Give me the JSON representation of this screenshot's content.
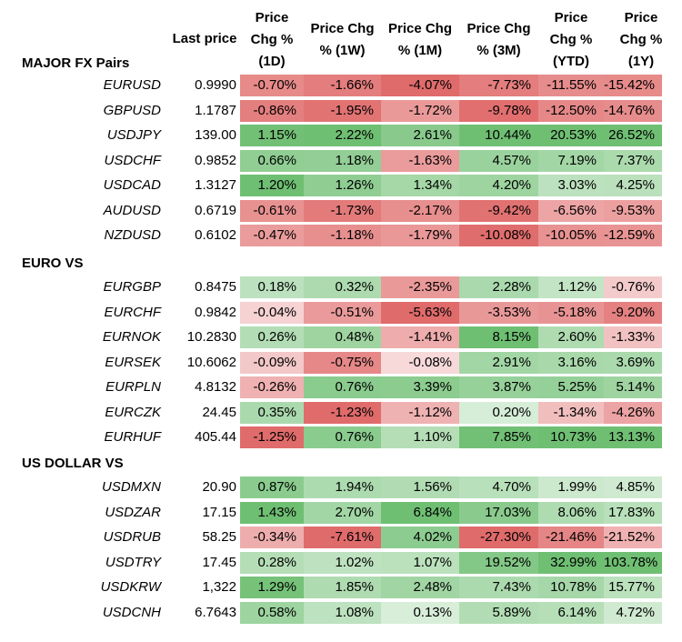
{
  "headers": [
    "Last price",
    "Price\nChg %\n(1D)",
    "Price Chg\n% (1W)",
    "Price Chg\n% (1M)",
    "Price Chg\n% (3M)",
    "Price\nChg %\n(YTD)",
    "Price\nChg %\n(1Y)"
  ],
  "sections": [
    {
      "title": "MAJOR FX Pairs",
      "rows": [
        {
          "pair": "EURUSD",
          "last": "0.9990",
          "vals": [
            "-0.70%",
            "-1.66%",
            "-4.07%",
            "-7.73%",
            "-11.55%",
            "-15.42%"
          ]
        },
        {
          "pair": "GBPUSD",
          "last": "1.1787",
          "vals": [
            "-0.86%",
            "-1.95%",
            "-1.72%",
            "-9.78%",
            "-12.50%",
            "-14.76%"
          ]
        },
        {
          "pair": "USDJPY",
          "last": "139.00",
          "vals": [
            "1.15%",
            "2.22%",
            "2.61%",
            "10.44%",
            "20.53%",
            "26.52%"
          ]
        },
        {
          "pair": "USDCHF",
          "last": "0.9852",
          "vals": [
            "0.66%",
            "1.18%",
            "-1.63%",
            "4.57%",
            "7.19%",
            "7.37%"
          ]
        },
        {
          "pair": "USDCAD",
          "last": "1.3127",
          "vals": [
            "1.20%",
            "1.26%",
            "1.34%",
            "4.20%",
            "3.03%",
            "4.25%"
          ]
        },
        {
          "pair": "AUDUSD",
          "last": "0.6719",
          "vals": [
            "-0.61%",
            "-1.73%",
            "-2.17%",
            "-9.42%",
            "-6.56%",
            "-9.53%"
          ]
        },
        {
          "pair": "NZDUSD",
          "last": "0.6102",
          "vals": [
            "-0.47%",
            "-1.18%",
            "-1.79%",
            "-10.08%",
            "-10.05%",
            "-12.59%"
          ]
        }
      ]
    },
    {
      "title": "EURO VS",
      "rows": [
        {
          "pair": "EURGBP",
          "last": "0.8475",
          "vals": [
            "0.18%",
            "0.32%",
            "-2.35%",
            "2.28%",
            "1.12%",
            "-0.76%"
          ]
        },
        {
          "pair": "EURCHF",
          "last": "0.9842",
          "vals": [
            "-0.04%",
            "-0.51%",
            "-5.63%",
            "-3.53%",
            "-5.18%",
            "-9.20%"
          ]
        },
        {
          "pair": "EURNOK",
          "last": "10.2830",
          "vals": [
            "0.26%",
            "0.48%",
            "-1.41%",
            "8.15%",
            "2.60%",
            "-1.33%"
          ]
        },
        {
          "pair": "EURSEK",
          "last": "10.6062",
          "vals": [
            "-0.09%",
            "-0.75%",
            "-0.08%",
            "2.91%",
            "3.16%",
            "3.69%"
          ]
        },
        {
          "pair": "EURPLN",
          "last": "4.8132",
          "vals": [
            "-0.26%",
            "0.76%",
            "3.39%",
            "3.87%",
            "5.25%",
            "5.14%"
          ]
        },
        {
          "pair": "EURCZK",
          "last": "24.45",
          "vals": [
            "0.35%",
            "-1.23%",
            "-1.12%",
            "0.20%",
            "-1.34%",
            "-4.26%"
          ]
        },
        {
          "pair": "EURHUF",
          "last": "405.44",
          "vals": [
            "-1.25%",
            "0.76%",
            "1.10%",
            "7.85%",
            "10.73%",
            "13.13%"
          ]
        }
      ]
    },
    {
      "title": "US DOLLAR VS",
      "rows": [
        {
          "pair": "USDMXN",
          "last": "20.90",
          "vals": [
            "0.87%",
            "1.94%",
            "1.56%",
            "4.70%",
            "1.99%",
            "4.85%"
          ]
        },
        {
          "pair": "USDZAR",
          "last": "17.15",
          "vals": [
            "1.43%",
            "2.70%",
            "6.84%",
            "17.03%",
            "8.06%",
            "17.83%"
          ]
        },
        {
          "pair": "USDRUB",
          "last": "58.25",
          "vals": [
            "-0.34%",
            "-7.61%",
            "4.02%",
            "-27.30%",
            "-21.46%",
            "-21.52%"
          ]
        },
        {
          "pair": "USDTRY",
          "last": "17.45",
          "vals": [
            "0.28%",
            "1.02%",
            "1.07%",
            "19.52%",
            "32.99%",
            "103.78%"
          ]
        },
        {
          "pair": "USDKRW",
          "last": "1,322",
          "vals": [
            "1.29%",
            "1.85%",
            "2.48%",
            "7.43%",
            "10.78%",
            "15.77%"
          ]
        },
        {
          "pair": "USDCNH",
          "last": "6.7643",
          "vals": [
            "0.58%",
            "1.08%",
            "0.13%",
            "5.89%",
            "6.14%",
            "4.72%"
          ]
        }
      ]
    }
  ],
  "colors": {
    "positive_strong": "#6fbf73",
    "negative_strong": "#e06b6b",
    "neutral": "#ffffff"
  }
}
